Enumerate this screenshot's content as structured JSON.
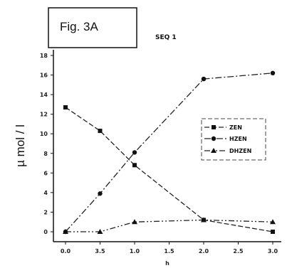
{
  "figure_label": "Fig. 3A",
  "chart_data": {
    "type": "line",
    "title": "SEQ 1",
    "xlabel": "h",
    "ylabel": "µ mol / l",
    "x": [
      0,
      3,
      10,
      20,
      30
    ],
    "x_tick_labels": [
      "0.0",
      "3.5",
      "1.0",
      "1.5",
      "2.0",
      "2.5",
      "3.0"
    ],
    "y_ticks": [
      0,
      2,
      4,
      6,
      8,
      10,
      12,
      14,
      16,
      18
    ],
    "ylim": [
      0,
      18
    ],
    "grid": false,
    "legend": "right",
    "series": [
      {
        "name": "ZEN",
        "marker": "square",
        "values": [
          12.7,
          10.3,
          6.8,
          1.2,
          0.0
        ]
      },
      {
        "name": "HZEN",
        "marker": "circle",
        "values": [
          0.0,
          3.9,
          8.1,
          15.6,
          16.2
        ]
      },
      {
        "name": "DHZEN",
        "marker": "triangle",
        "values": [
          0.0,
          0.0,
          1.0,
          1.2,
          1.0
        ]
      }
    ]
  }
}
